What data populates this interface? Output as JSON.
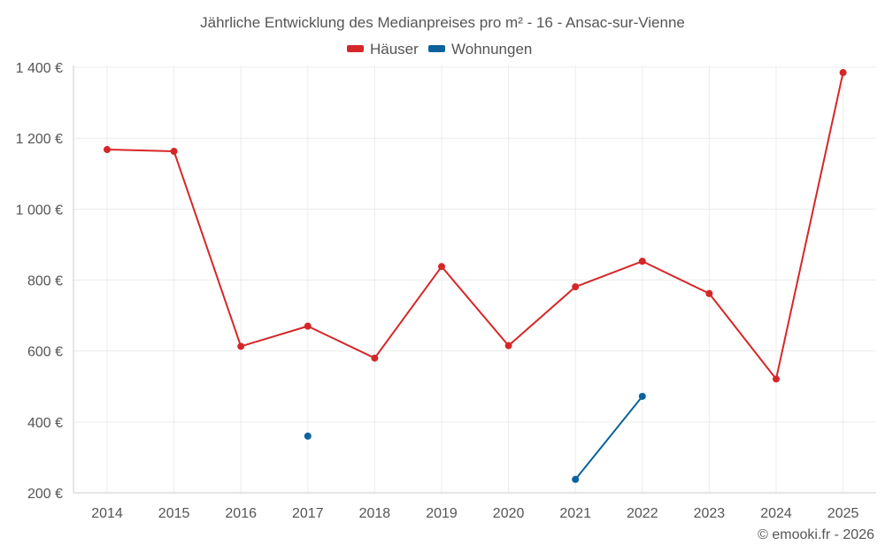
{
  "chart_data": {
    "type": "line",
    "title": "Jährliche Entwicklung des Medianpreises pro m² - 16 - Ansac-sur-Vienne",
    "x": [
      2014,
      2015,
      2016,
      2017,
      2018,
      2019,
      2020,
      2021,
      2022,
      2023,
      2024,
      2025
    ],
    "x_tick_labels": [
      "2014",
      "2015",
      "2016",
      "2017",
      "2018",
      "2019",
      "2020",
      "2021",
      "2022",
      "2023",
      "2024",
      "2025"
    ],
    "ylim": [
      200,
      1440
    ],
    "y_ticks": [
      200,
      400,
      600,
      800,
      1000,
      1200,
      1400
    ],
    "y_tick_labels": [
      "200 €",
      "400 €",
      "600 €",
      "800 €",
      "1 000 €",
      "1 200 €",
      "1 400 €"
    ],
    "grid": true,
    "legend_position": "top-center",
    "series": [
      {
        "name": "Häuser",
        "color": "#d62728",
        "values": [
          1168,
          1163,
          613,
          670,
          580,
          838,
          615,
          781,
          853,
          762,
          521,
          1385
        ]
      },
      {
        "name": "Wohnungen",
        "color": "#0b639c",
        "values": [
          null,
          null,
          null,
          360,
          null,
          null,
          null,
          238,
          472,
          null,
          null,
          null
        ]
      }
    ],
    "credit": "© emooki.fr - 2026"
  }
}
